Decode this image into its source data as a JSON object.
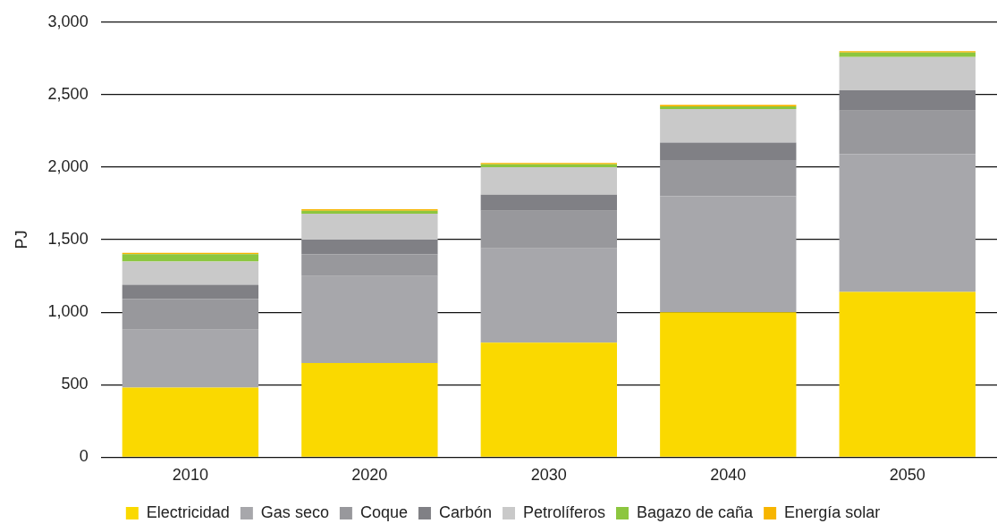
{
  "chart_data": {
    "type": "bar",
    "stacked": true,
    "ylabel": "PJ",
    "categories": [
      "2010",
      "2020",
      "2030",
      "2040",
      "2050"
    ],
    "series": [
      {
        "name": "Electricidad",
        "color": "#fad900",
        "values": [
          480,
          650,
          790,
          1000,
          1140
        ]
      },
      {
        "name": "Gas seco",
        "color": "#a7a7ab",
        "values": [
          400,
          600,
          650,
          800,
          950
        ]
      },
      {
        "name": "Coque",
        "color": "#98989c",
        "values": [
          210,
          150,
          260,
          250,
          300
        ]
      },
      {
        "name": "Carbón",
        "color": "#808085",
        "values": [
          100,
          100,
          110,
          120,
          140
        ]
      },
      {
        "name": "Petrolíferos",
        "color": "#c9c9c9",
        "values": [
          160,
          180,
          190,
          230,
          230
        ]
      },
      {
        "name": "Bagazo de caña",
        "color": "#8cc63f",
        "values": [
          50,
          20,
          20,
          20,
          30
        ]
      },
      {
        "name": "Energía solar",
        "color": "#f7b500",
        "values": [
          10,
          10,
          10,
          10,
          10
        ]
      }
    ],
    "ylim": [
      0,
      3000
    ],
    "yticks": [
      {
        "value": 0,
        "label": "0"
      },
      {
        "value": 500,
        "label": "500"
      },
      {
        "value": 1000,
        "label": "1,000"
      },
      {
        "value": 1500,
        "label": "1,500"
      },
      {
        "value": 2000,
        "label": "2,000"
      },
      {
        "value": 2500,
        "label": "2,500"
      },
      {
        "value": 3000,
        "label": "3,000"
      }
    ],
    "grid": "y",
    "legend": "bottom"
  }
}
